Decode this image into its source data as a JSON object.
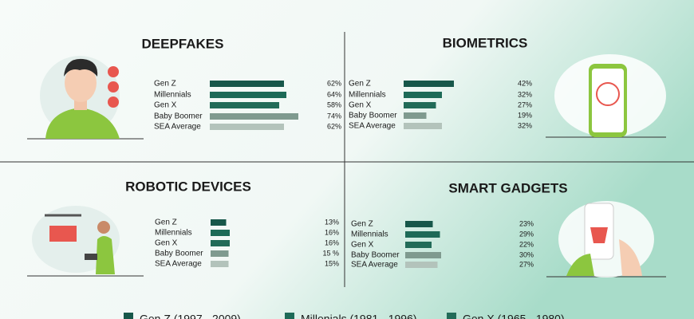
{
  "chart_data": [
    {
      "type": "bar",
      "title": "DEEPFAKES",
      "categories": [
        "Gen Z",
        "Millennials",
        "Gen X",
        "Baby Boomer",
        "SEA Average"
      ],
      "values": [
        62,
        64,
        58,
        74,
        62
      ],
      "value_labels": [
        "62%",
        "64%",
        "58%",
        "74%",
        "62%"
      ],
      "colors": [
        "#17574a",
        "#1d6a57",
        "#226b58",
        "#7f9a8f",
        "#b3c3bb"
      ],
      "xlim": [
        0,
        80
      ]
    },
    {
      "type": "bar",
      "title": "BIOMETRICS",
      "categories": [
        "Gen Z",
        "Millennials",
        "Gen X",
        "Baby Boomer",
        "SEA Average"
      ],
      "values": [
        42,
        32,
        27,
        19,
        32
      ],
      "value_labels": [
        "42%",
        "32%",
        "27%",
        "19%",
        "32%"
      ],
      "colors": [
        "#17574a",
        "#1d6a57",
        "#226b58",
        "#7f9a8f",
        "#b3c3bb"
      ],
      "xlim": [
        0,
        80
      ]
    },
    {
      "type": "bar",
      "title": "ROBOTIC DEVICES",
      "categories": [
        "Gen Z",
        "Millennials",
        "Gen X",
        "Baby Boomer",
        "SEA Average"
      ],
      "values": [
        13,
        16,
        16,
        15,
        15
      ],
      "value_labels": [
        "13%",
        "16%",
        "16%",
        "15 %",
        "15%"
      ],
      "colors": [
        "#17574a",
        "#1d6a57",
        "#226b58",
        "#7f9a8f",
        "#b3c3bb"
      ],
      "xlim": [
        0,
        80
      ]
    },
    {
      "type": "bar",
      "title": "SMART GADGETS",
      "categories": [
        "Gen Z",
        "Millennials",
        "Gen X",
        "Baby Boomer",
        "SEA Average"
      ],
      "values": [
        23,
        29,
        22,
        30,
        27
      ],
      "value_labels": [
        "23%",
        "29%",
        "22%",
        "30%",
        "27%"
      ],
      "colors": [
        "#17574a",
        "#1d6a57",
        "#226b58",
        "#7f9a8f",
        "#b3c3bb"
      ],
      "xlim": [
        0,
        80
      ]
    }
  ],
  "legend": [
    {
      "label": "Gen Z (1997 - 2009)",
      "color": "#17574a"
    },
    {
      "label": "Millenials (1981 - 1996)",
      "color": "#1d6a57"
    },
    {
      "label": "Gen X (1965 - 1980)",
      "color": "#226b58"
    }
  ]
}
